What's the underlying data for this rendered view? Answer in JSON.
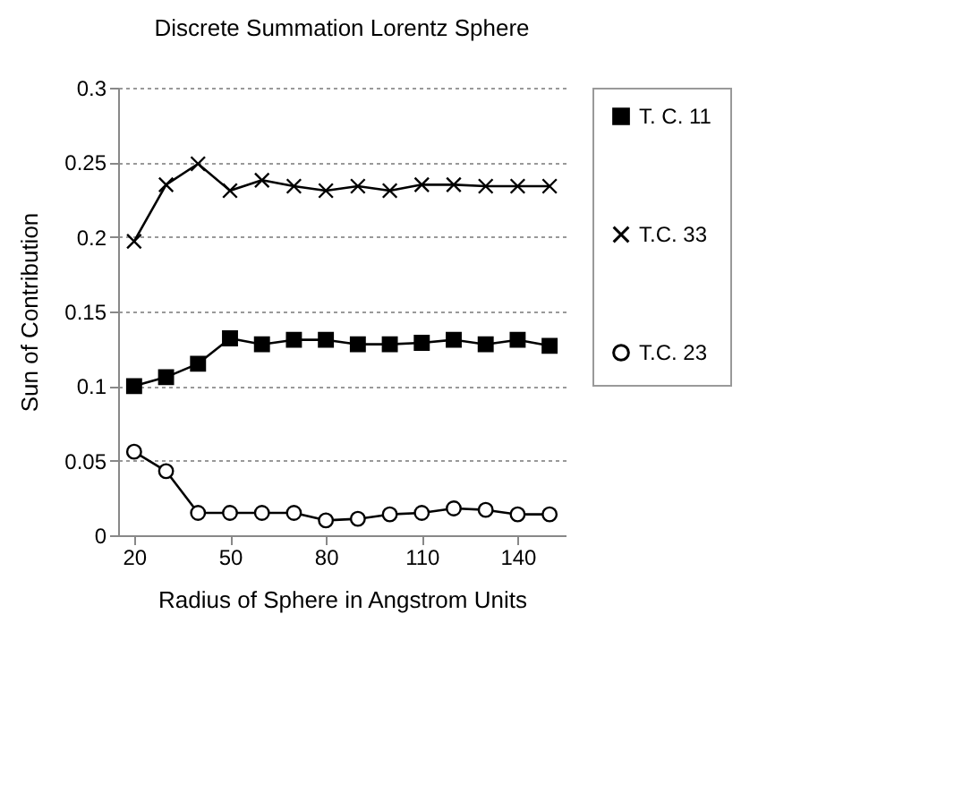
{
  "chart_data": {
    "type": "line",
    "title": "Discrete Summation Lorentz Sphere",
    "xlabel": "Radius of Sphere in Angstrom Units",
    "ylabel": "Sun of Contribution",
    "x": [
      20,
      30,
      40,
      50,
      60,
      70,
      80,
      90,
      100,
      110,
      120,
      130,
      140,
      150
    ],
    "xlim": [
      15,
      155
    ],
    "xticks": [
      20,
      50,
      80,
      110,
      140
    ],
    "ylim": [
      0,
      0.3
    ],
    "yticks": [
      0,
      0.05,
      0.1,
      0.15,
      0.2,
      0.25,
      0.3
    ],
    "grid": "y",
    "legend": "right",
    "series": [
      {
        "name": "T. C. 11",
        "color": "#000000",
        "marker": "square",
        "values": [
          0.1,
          0.106,
          0.115,
          0.132,
          0.128,
          0.131,
          0.131,
          0.128,
          0.128,
          0.129,
          0.131,
          0.128,
          0.131,
          0.127
        ]
      },
      {
        "name": "T.C. 33",
        "color": "#000000",
        "marker": "cross",
        "values": [
          0.197,
          0.235,
          0.249,
          0.231,
          0.238,
          0.234,
          0.231,
          0.234,
          0.231,
          0.235,
          0.235,
          0.234,
          0.234,
          0.234
        ]
      },
      {
        "name": "T.C. 23",
        "color": "#000000",
        "marker": "circle",
        "values": [
          0.056,
          0.043,
          0.015,
          0.015,
          0.015,
          0.015,
          0.01,
          0.011,
          0.014,
          0.015,
          0.018,
          0.017,
          0.014,
          0.014
        ]
      }
    ]
  }
}
